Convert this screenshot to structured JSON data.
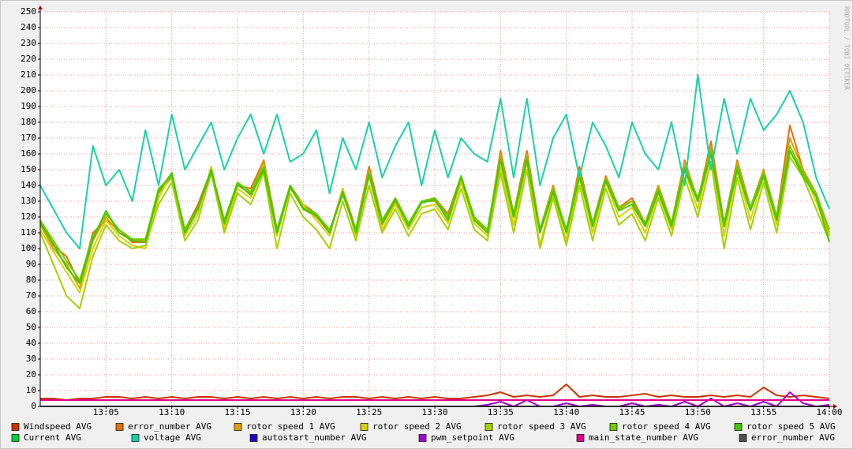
{
  "chart_data": {
    "type": "line",
    "watermark": "RRDTOOL / TOBI OETIKER",
    "grid": true,
    "xlim": [
      "13:00",
      "14:00"
    ],
    "xticks": [
      "13:05",
      "13:10",
      "13:15",
      "13:20",
      "13:25",
      "13:30",
      "13:35",
      "13:40",
      "13:45",
      "13:50",
      "13:55",
      "14:00"
    ],
    "ylim": [
      0,
      250
    ],
    "yticks": [
      0,
      10,
      20,
      30,
      40,
      50,
      60,
      70,
      80,
      90,
      100,
      110,
      120,
      130,
      140,
      150,
      160,
      170,
      180,
      190,
      200,
      210,
      220,
      230,
      240,
      250
    ],
    "x": [
      "13:00",
      "13:01",
      "13:02",
      "13:03",
      "13:04",
      "13:05",
      "13:06",
      "13:07",
      "13:08",
      "13:09",
      "13:10",
      "13:11",
      "13:12",
      "13:13",
      "13:14",
      "13:15",
      "13:16",
      "13:17",
      "13:18",
      "13:19",
      "13:20",
      "13:21",
      "13:22",
      "13:23",
      "13:24",
      "13:25",
      "13:26",
      "13:27",
      "13:28",
      "13:29",
      "13:30",
      "13:31",
      "13:32",
      "13:33",
      "13:34",
      "13:35",
      "13:36",
      "13:37",
      "13:38",
      "13:39",
      "13:40",
      "13:41",
      "13:42",
      "13:43",
      "13:44",
      "13:45",
      "13:46",
      "13:47",
      "13:48",
      "13:49",
      "13:50",
      "13:51",
      "13:52",
      "13:53",
      "13:54",
      "13:55",
      "13:56",
      "13:57",
      "13:58",
      "13:59",
      "14:00"
    ],
    "series": [
      {
        "name": "Windspeed AVG",
        "color": "#cc3300",
        "values": [
          5,
          5,
          4,
          5,
          5,
          6,
          6,
          5,
          6,
          5,
          6,
          5,
          6,
          6,
          5,
          6,
          5,
          6,
          5,
          6,
          5,
          6,
          5,
          6,
          6,
          5,
          6,
          5,
          6,
          5,
          6,
          5,
          5,
          6,
          7,
          9,
          6,
          7,
          6,
          7,
          14,
          6,
          7,
          6,
          6,
          7,
          8,
          6,
          7,
          6,
          6,
          7,
          6,
          7,
          6,
          12,
          7,
          6,
          7,
          6,
          5
        ]
      },
      {
        "name": "error_number AVG",
        "color": "#e07010",
        "values": [
          118,
          102,
          95,
          78,
          110,
          118,
          112,
          104,
          104,
          138,
          146,
          112,
          128,
          150,
          118,
          140,
          138,
          156,
          112,
          140,
          128,
          122,
          110,
          138,
          112,
          152,
          118,
          132,
          116,
          130,
          132,
          122,
          146,
          120,
          110,
          162,
          122,
          162,
          112,
          140,
          110,
          152,
          116,
          146,
          126,
          132,
          116,
          140,
          116,
          156,
          130,
          168,
          116,
          156,
          126,
          150,
          120,
          178,
          150,
          135,
          108
        ]
      },
      {
        "name": "rotor speed 1 AVG",
        "color": "#d8a000",
        "values": [
          115,
          100,
          90,
          75,
          105,
          120,
          110,
          105,
          105,
          135,
          145,
          110,
          125,
          150,
          115,
          140,
          135,
          155,
          110,
          140,
          125,
          120,
          110,
          135,
          110,
          150,
          115,
          130,
          115,
          130,
          130,
          120,
          145,
          120,
          110,
          160,
          120,
          160,
          110,
          140,
          110,
          150,
          115,
          145,
          125,
          130,
          115,
          140,
          115,
          155,
          130,
          165,
          115,
          155,
          125,
          150,
          120,
          170,
          150,
          135,
          110
        ]
      },
      {
        "name": "rotor speed 2 AVG",
        "color": "#d8d000",
        "values": [
          112,
          98,
          85,
          72,
          100,
          118,
          108,
          102,
          100,
          132,
          148,
          108,
          122,
          152,
          112,
          138,
          132,
          150,
          108,
          138,
          128,
          118,
          108,
          138,
          108,
          146,
          112,
          128,
          112,
          126,
          128,
          116,
          142,
          116,
          108,
          152,
          115,
          155,
          102,
          135,
          105,
          145,
          110,
          142,
          120,
          126,
          110,
          135,
          112,
          150,
          125,
          160,
          108,
          150,
          118,
          146,
          115,
          162,
          148,
          130,
          108
        ]
      },
      {
        "name": "rotor speed 3 AVG",
        "color": "#a8d000",
        "values": [
          110,
          90,
          70,
          62,
          95,
          115,
          105,
          100,
          102,
          128,
          142,
          105,
          118,
          148,
          110,
          135,
          128,
          148,
          100,
          135,
          120,
          112,
          100,
          130,
          105,
          140,
          110,
          125,
          108,
          122,
          125,
          112,
          138,
          112,
          105,
          148,
          110,
          150,
          100,
          132,
          102,
          140,
          105,
          138,
          115,
          122,
          105,
          132,
          108,
          145,
          120,
          155,
          100,
          145,
          112,
          142,
          110,
          158,
          145,
          125,
          105
        ]
      },
      {
        "name": "rotor speed 4 AVG",
        "color": "#70cc00",
        "values": [
          118,
          105,
          92,
          80,
          108,
          122,
          112,
          106,
          106,
          138,
          146,
          112,
          126,
          148,
          118,
          142,
          136,
          152,
          112,
          140,
          126,
          122,
          112,
          134,
          112,
          148,
          118,
          132,
          116,
          130,
          132,
          120,
          146,
          120,
          112,
          158,
          122,
          158,
          112,
          138,
          112,
          148,
          116,
          144,
          126,
          130,
          116,
          138,
          116,
          152,
          132,
          162,
          116,
          152,
          126,
          148,
          120,
          165,
          148,
          135,
          112
        ]
      },
      {
        "name": "rotor speed 5 AVG",
        "color": "#40c800",
        "values": [
          116,
          103,
          88,
          78,
          106,
          124,
          110,
          105,
          104,
          136,
          148,
          110,
          125,
          150,
          116,
          141,
          134,
          150,
          110,
          139,
          125,
          121,
          110,
          136,
          110,
          147,
          116,
          131,
          114,
          129,
          131,
          118,
          145,
          118,
          110,
          156,
          120,
          156,
          110,
          136,
          110,
          146,
          114,
          143,
          124,
          128,
          114,
          136,
          114,
          150,
          130,
          160,
          114,
          150,
          124,
          146,
          118,
          162,
          146,
          133,
          104
        ]
      },
      {
        "name": "Current AVG",
        "color": "#00cc44",
        "values": [
          0,
          0,
          0,
          0,
          0,
          0,
          0,
          0,
          0,
          0,
          0,
          0,
          0,
          0,
          0,
          0,
          0,
          0,
          0,
          0,
          0,
          0,
          0,
          0,
          0,
          0,
          0,
          0,
          0,
          0,
          0,
          0,
          0,
          0,
          0,
          0,
          0,
          0,
          0,
          0,
          0,
          0,
          0,
          0,
          0,
          0,
          0,
          0,
          0,
          0,
          0,
          0,
          0,
          0,
          0,
          0,
          0,
          0,
          0,
          0,
          0
        ]
      },
      {
        "name": "voltage AVG",
        "color": "#1ad1a5",
        "values": [
          140,
          125,
          110,
          100,
          165,
          140,
          150,
          130,
          175,
          140,
          185,
          150,
          165,
          180,
          150,
          170,
          185,
          160,
          185,
          155,
          160,
          175,
          135,
          170,
          150,
          180,
          145,
          165,
          180,
          140,
          175,
          145,
          170,
          160,
          155,
          195,
          145,
          195,
          140,
          170,
          185,
          145,
          180,
          165,
          145,
          180,
          160,
          150,
          180,
          140,
          210,
          150,
          195,
          160,
          195,
          175,
          185,
          200,
          180,
          145,
          125
        ]
      },
      {
        "name": "autostart_number AVG",
        "color": "#2200cc",
        "values": [
          0,
          0,
          0,
          0,
          0,
          0,
          0,
          0,
          0,
          0,
          0,
          0,
          0,
          0,
          0,
          0,
          0,
          0,
          0,
          0,
          0,
          0,
          0,
          0,
          0,
          0,
          0,
          0,
          0,
          0,
          0,
          0,
          0,
          0,
          0,
          0,
          0,
          0,
          0,
          0,
          0,
          0,
          0,
          0,
          0,
          0,
          0,
          0,
          0,
          0,
          0,
          0,
          0,
          0,
          0,
          0,
          0,
          0,
          0,
          0,
          0
        ]
      },
      {
        "name": "pwm_setpoint AVG",
        "color": "#a000d8",
        "values": [
          0,
          0,
          0,
          0,
          0,
          0,
          0,
          0,
          0,
          0,
          0,
          0,
          0,
          0,
          0,
          0,
          0,
          0,
          0,
          0,
          0,
          0,
          0,
          0,
          0,
          0,
          0,
          0,
          0,
          0,
          0,
          0,
          0,
          0,
          1,
          3,
          0,
          4,
          0,
          0,
          2,
          0,
          1,
          0,
          0,
          2,
          0,
          1,
          0,
          3,
          0,
          5,
          0,
          2,
          0,
          3,
          0,
          9,
          2,
          0,
          1
        ]
      },
      {
        "name": "main_state_number AVG",
        "color": "#e0008a",
        "values": [
          4,
          4,
          4,
          4,
          4,
          4,
          4,
          4,
          4,
          4,
          4,
          4,
          4,
          4,
          4,
          4,
          4,
          4,
          4,
          4,
          4,
          4,
          4,
          4,
          4,
          4,
          4,
          4,
          4,
          4,
          4,
          4,
          4,
          4,
          4,
          4,
          4,
          4,
          4,
          4,
          4,
          4,
          4,
          4,
          4,
          4,
          4,
          4,
          4,
          4,
          4,
          4,
          4,
          4,
          4,
          4,
          4,
          4,
          4,
          4,
          4
        ]
      },
      {
        "name": "error_number AVG",
        "color": "#505050",
        "values": [
          0,
          0,
          0,
          0,
          0,
          0,
          0,
          0,
          0,
          0,
          0,
          0,
          0,
          0,
          0,
          0,
          0,
          0,
          0,
          0,
          0,
          0,
          0,
          0,
          0,
          0,
          0,
          0,
          0,
          0,
          0,
          0,
          0,
          0,
          0,
          0,
          0,
          0,
          0,
          0,
          0,
          0,
          0,
          0,
          0,
          0,
          0,
          0,
          0,
          0,
          0,
          0,
          0,
          0,
          0,
          0,
          0,
          0,
          0,
          0,
          0
        ]
      }
    ]
  }
}
